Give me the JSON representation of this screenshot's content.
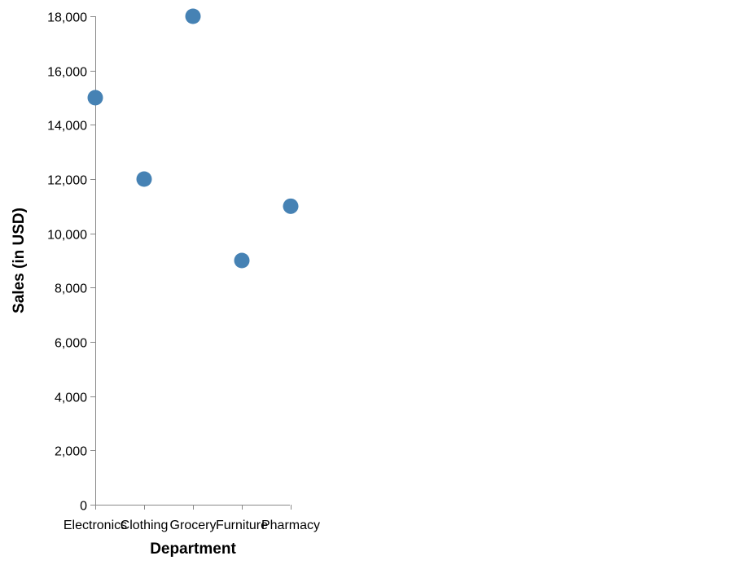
{
  "chart_data": {
    "type": "scatter",
    "title": "",
    "xlabel": "Department",
    "ylabel": "Sales (in USD)",
    "categories": [
      "Electronics",
      "Clothing",
      "Grocery",
      "Furniture",
      "Pharmacy"
    ],
    "values": [
      15000,
      12000,
      18000,
      9000,
      11000
    ],
    "ylim": [
      0,
      18000
    ],
    "yticks": [
      0,
      2000,
      4000,
      6000,
      8000,
      10000,
      12000,
      14000,
      16000,
      18000
    ],
    "ytick_labels": [
      "0",
      "2,000",
      "4,000",
      "6,000",
      "8,000",
      "10,000",
      "12,000",
      "14,000",
      "16,000",
      "18,000"
    ],
    "grid": false,
    "legend": "none",
    "point_color": "#4682b4"
  }
}
